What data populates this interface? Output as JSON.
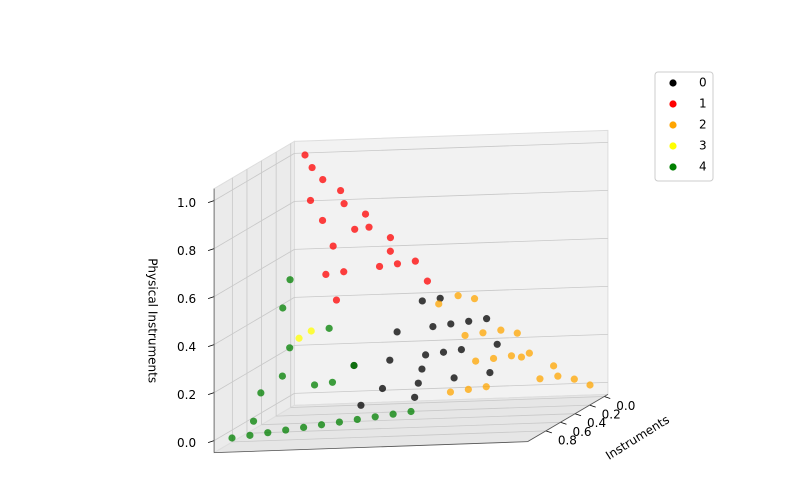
{
  "chart_data": {
    "type": "scatter3d",
    "xlabel": "Instruments",
    "zlabel": "Physical Instruments",
    "xlim": [
      -0.05,
      1.05
    ],
    "ylim": [
      -0.05,
      1.05
    ],
    "zlim": [
      -0.05,
      1.05
    ],
    "xticks": [
      {
        "value": 0,
        "label": "0.0"
      },
      {
        "value": 0.2,
        "label": "0.2"
      },
      {
        "value": 0.4,
        "label": "0.4"
      },
      {
        "value": 0.6,
        "label": "0.6"
      },
      {
        "value": 0.8,
        "label": "0.8"
      }
    ],
    "zticks": [
      {
        "value": 0,
        "label": "0.0"
      },
      {
        "value": 0.2,
        "label": "0.2"
      },
      {
        "value": 0.4,
        "label": "0.4"
      },
      {
        "value": 0.6,
        "label": "0.6"
      },
      {
        "value": 0.8,
        "label": "0.8"
      },
      {
        "value": 1,
        "label": "1.0"
      }
    ],
    "grid": true,
    "legend": "upper right",
    "series": [
      {
        "name": "0",
        "color": "#000000",
        "x": [
          0.1,
          0.15,
          0.2,
          0.1,
          0.3,
          0.2,
          0.3,
          0.4,
          0.1,
          0.25,
          0.35,
          0.2,
          0.4,
          0.5,
          0.3,
          0.45,
          0.6,
          0.05,
          0.15,
          0.5
        ],
        "y": [
          0.5,
          0.45,
          0.5,
          0.6,
          0.4,
          0.6,
          0.5,
          0.4,
          0.7,
          0.55,
          0.5,
          0.7,
          0.5,
          0.4,
          0.6,
          0.5,
          0.35,
          0.65,
          0.55,
          0.3
        ],
        "z": [
          0.4,
          0.4,
          0.3,
          0.3,
          0.3,
          0.2,
          0.2,
          0.2,
          0.2,
          0.2,
          0.15,
          0.1,
          0.1,
          0.1,
          0.1,
          0.05,
          0.05,
          0.3,
          0.3,
          0.2
        ]
      },
      {
        "name": "1",
        "color": "#ff0000",
        "x": [
          0,
          0.02,
          0.03,
          0.02,
          0.05,
          0.03,
          0.06,
          0.04,
          0.08,
          0.05,
          0.1,
          0.15,
          0.2,
          0.25,
          0.3,
          0.1,
          0.35,
          0.15,
          0.08,
          0.12
        ],
        "y": [
          0,
          0.03,
          0.07,
          0.13,
          0.15,
          0.22,
          0.24,
          0.31,
          0.32,
          0.4,
          0.35,
          0.1,
          0.15,
          0.2,
          0.15,
          0.2,
          0.2,
          0.3,
          0.45,
          0.05
        ],
        "z": [
          1,
          0.95,
          0.9,
          0.85,
          0.8,
          0.75,
          0.7,
          0.65,
          0.6,
          0.55,
          0.55,
          0.75,
          0.65,
          0.55,
          0.55,
          0.7,
          0.45,
          0.55,
          0.47,
          0.83
        ]
      },
      {
        "name": "2",
        "color": "#ffa500",
        "x": [
          0,
          0.02,
          0.05,
          0.1,
          0.05,
          0.1,
          0.05,
          0.15,
          0.1,
          0.05,
          0.2,
          0.02,
          0.15,
          0.25,
          0.3,
          0.35,
          0.03,
          0.08,
          0.12,
          0.02
        ],
        "y": [
          1,
          0.95,
          0.9,
          0.85,
          0.8,
          0.75,
          0.7,
          0.7,
          0.65,
          0.55,
          0.65,
          0.6,
          0.6,
          0.7,
          0.65,
          0.6,
          0.88,
          0.78,
          0.5,
          0.75
        ],
        "z": [
          0,
          0.03,
          0.05,
          0.05,
          0.15,
          0.15,
          0.25,
          0.15,
          0.25,
          0.4,
          0.15,
          0.38,
          0.25,
          0.05,
          0.05,
          0.05,
          0.09,
          0.14,
          0.38,
          0.23
        ]
      },
      {
        "name": "3",
        "color": "#ffff00",
        "x": [
          0.5,
          0.55
        ],
        "y": [
          0.15,
          0.12
        ],
        "z": [
          0.35,
          0.33
        ]
      },
      {
        "name": "4",
        "color": "#008000",
        "x": [
          1,
          0.95,
          0.9,
          0.85,
          0.8,
          0.75,
          0.7,
          0.65,
          0.6,
          0.55,
          0.5,
          0.7,
          0.6,
          0.5,
          0.8,
          0.6,
          0.5,
          0.45,
          0.65,
          0.9,
          0.4
        ],
        "y": [
          0,
          0.05,
          0.1,
          0.15,
          0.2,
          0.25,
          0.3,
          0.35,
          0.4,
          0.45,
          0.5,
          0.1,
          0.1,
          0.05,
          0.05,
          0.25,
          0.3,
          0.2,
          0.2,
          0.05,
          0.05
        ],
        "z": [
          0,
          0,
          0,
          0,
          0,
          0,
          0,
          0,
          0,
          0,
          0,
          0.2,
          0.3,
          0.45,
          0.15,
          0.15,
          0.2,
          0.35,
          0.15,
          0.05,
          0.55
        ]
      }
    ]
  }
}
